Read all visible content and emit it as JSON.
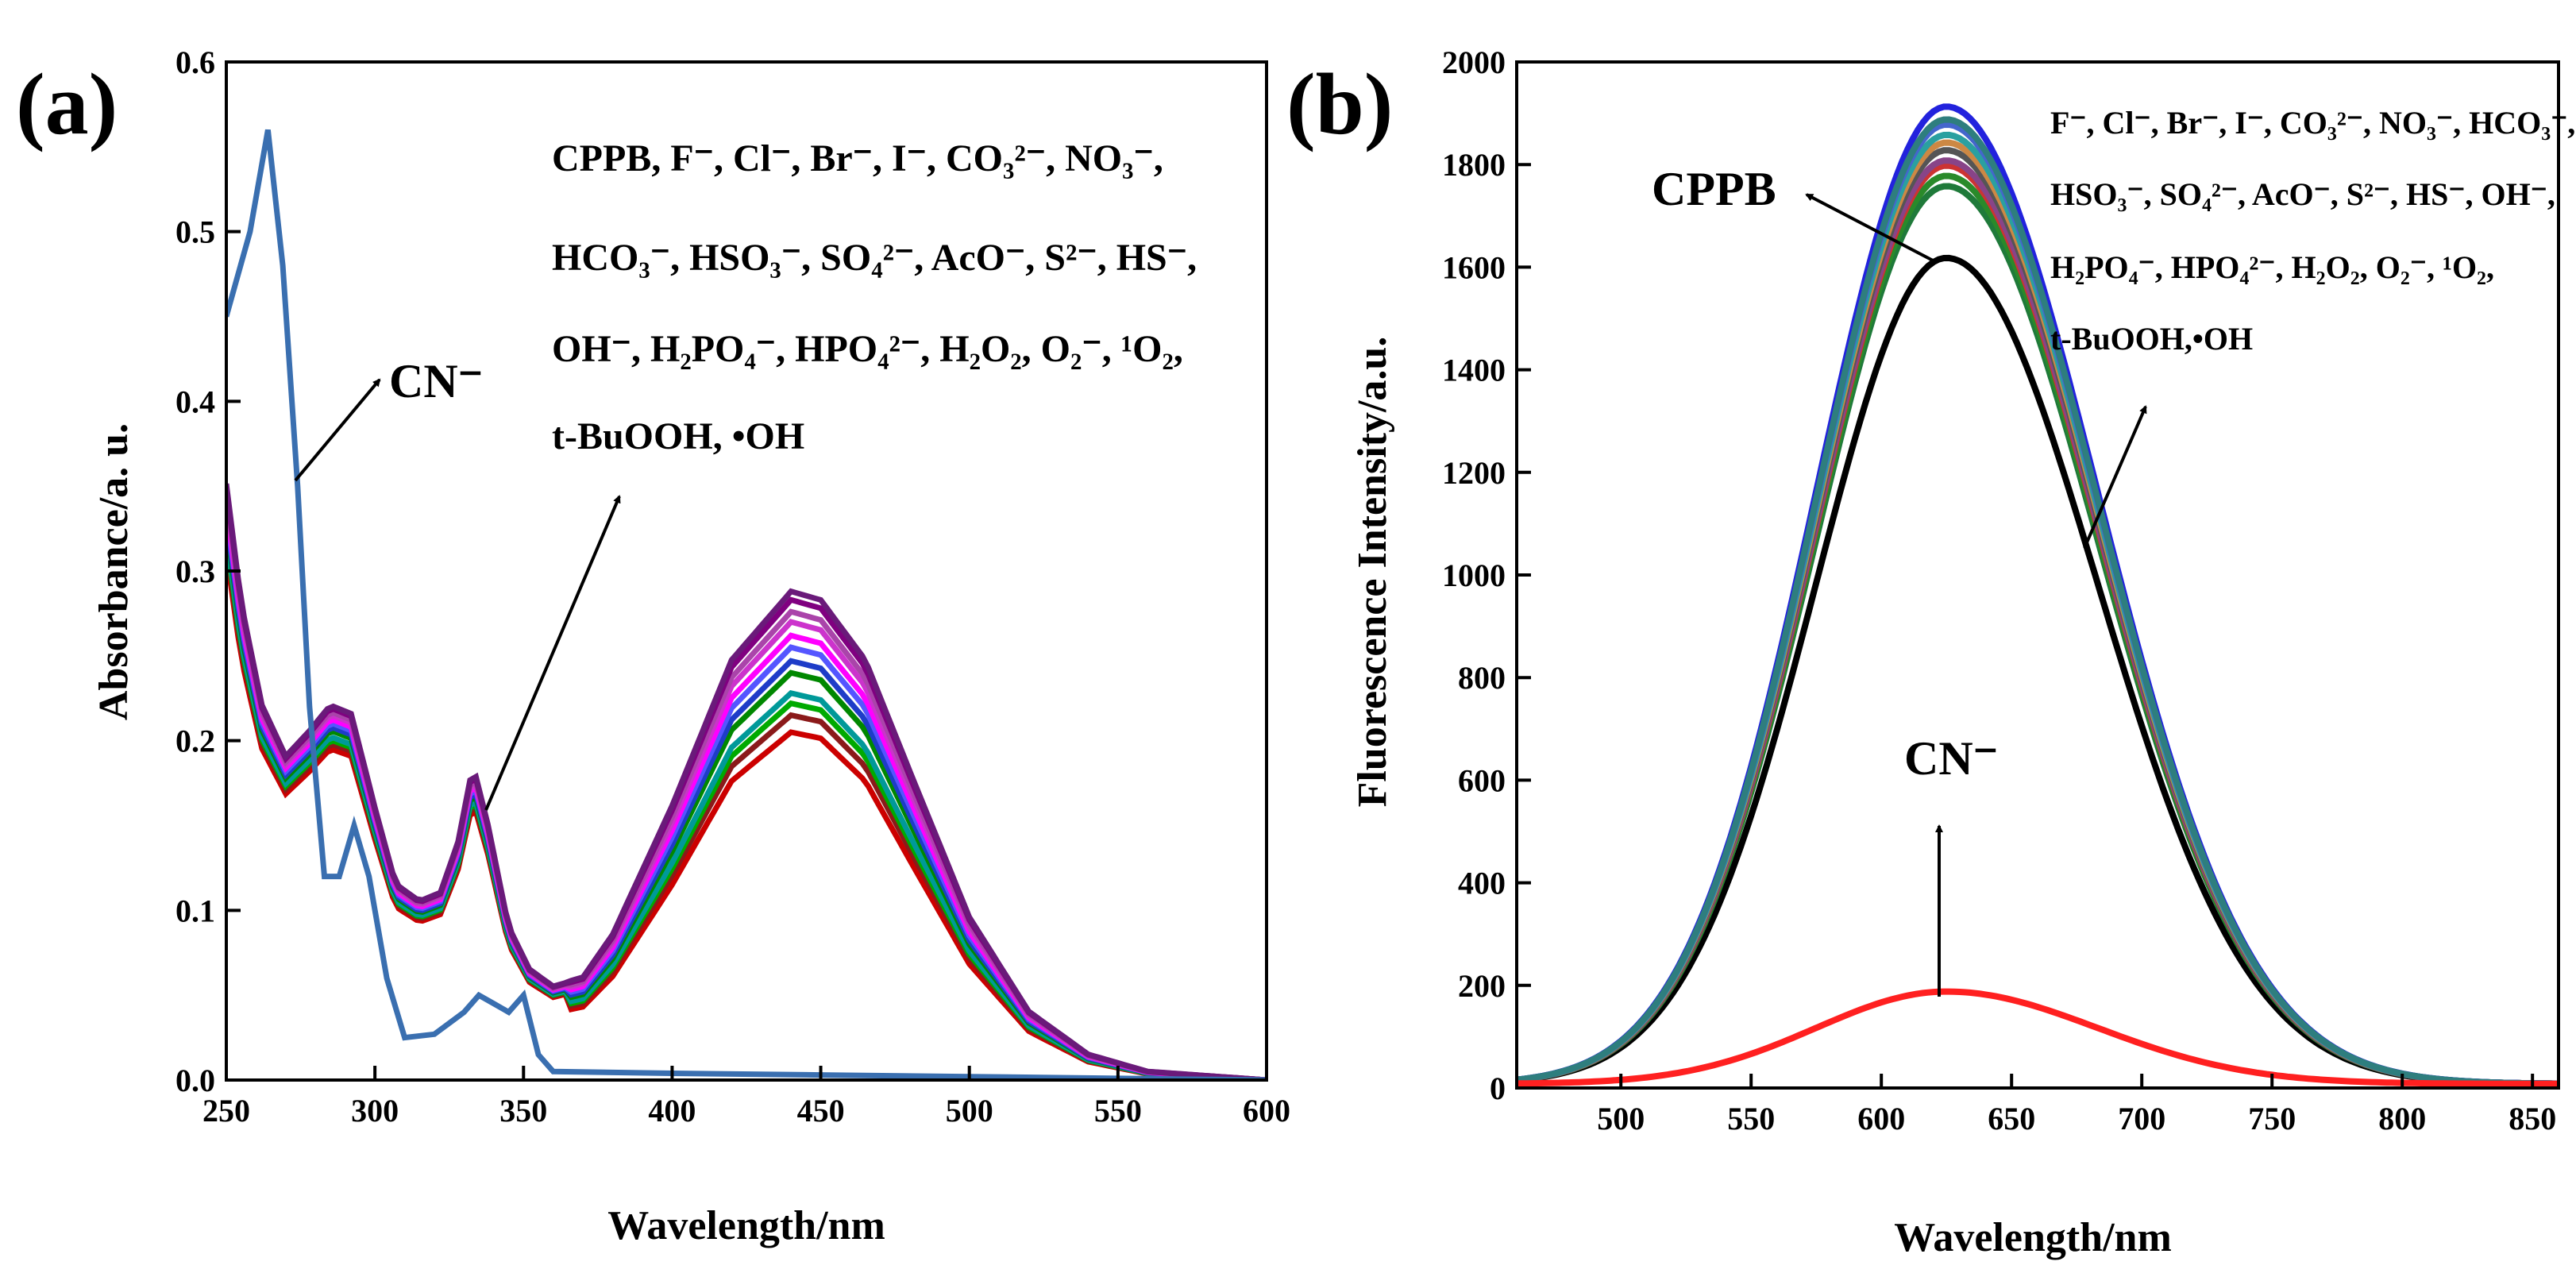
{
  "chart_data": [
    {
      "panel": "(a)",
      "type": "line",
      "xlabel": "Wavelength/nm",
      "ylabel": "Absorbance/a. u.",
      "xlim": [
        250,
        600
      ],
      "ylim": [
        0,
        0.6
      ],
      "xticks": [
        "250",
        "300",
        "350",
        "400",
        "450",
        "500",
        "550",
        "600"
      ],
      "yticks": [
        "0.0",
        "0.1",
        "0.2",
        "0.3",
        "0.4",
        "0.5",
        "0.6"
      ],
      "annotations": {
        "cn": "CN⁻",
        "ions": [
          "CPPB, F⁻, Cl⁻, Br⁻, I⁻, CO₃²⁻, NO₃⁻,",
          "HCO₃⁻, HSO₃⁻, SO₄²⁻, AcO⁻, S²⁻, HS⁻,",
          "OH⁻, H₂PO₄⁻, HPO₄²⁻, H₂O₂, O₂⁻, ¹O₂,",
          "t-BuOOH, •OH"
        ]
      },
      "series": [
        {
          "name": "CN⁻",
          "color": "#3a6fb0",
          "points": [
            [
              250,
              0.45
            ],
            [
              258,
              0.5
            ],
            [
              264,
              0.56
            ],
            [
              269,
              0.48
            ],
            [
              274,
              0.35
            ],
            [
              278,
              0.22
            ],
            [
              283,
              0.12
            ],
            [
              288,
              0.12
            ],
            [
              293,
              0.15
            ],
            [
              298,
              0.12
            ],
            [
              304,
              0.06
            ],
            [
              310,
              0.025
            ],
            [
              320,
              0.027
            ],
            [
              330,
              0.04
            ],
            [
              335,
              0.05
            ],
            [
              340,
              0.045
            ],
            [
              345,
              0.04
            ],
            [
              350,
              0.05
            ],
            [
              355,
              0.015
            ],
            [
              360,
              0.005
            ],
            [
              400,
              0.004
            ],
            [
              450,
              0.003
            ],
            [
              500,
              0.002
            ],
            [
              600,
              0.0
            ]
          ]
        },
        {
          "color": "#cc0000",
          "peak": 0.205
        },
        {
          "color": "#8b1a1a",
          "peak": 0.215
        },
        {
          "color": "#00aa00",
          "peak": 0.222
        },
        {
          "color": "#009999",
          "peak": 0.228
        },
        {
          "color": "#008800",
          "peak": 0.24
        },
        {
          "color": "#1e3cc8",
          "peak": 0.247
        },
        {
          "color": "#5555ff",
          "peak": 0.255
        },
        {
          "color": "#ff00ff",
          "peak": 0.262
        },
        {
          "color": "#cc33cc",
          "peak": 0.27
        },
        {
          "color": "#aa44aa",
          "peak": 0.276
        },
        {
          "color": "#800080",
          "peak": 0.283
        },
        {
          "color": "#6a1a7a",
          "peak": 0.288
        }
      ],
      "base_shape": [
        [
          250,
          0.35
        ],
        [
          255,
          0.28
        ],
        [
          262,
          0.22
        ],
        [
          270,
          0.19
        ],
        [
          278,
          0.205
        ],
        [
          285,
          0.22
        ],
        [
          292,
          0.215
        ],
        [
          300,
          0.16
        ],
        [
          307,
          0.115
        ],
        [
          315,
          0.105
        ],
        [
          322,
          0.11
        ],
        [
          328,
          0.14
        ],
        [
          333,
          0.185
        ],
        [
          338,
          0.15
        ],
        [
          345,
          0.09
        ],
        [
          352,
          0.065
        ],
        [
          360,
          0.055
        ],
        [
          370,
          0.06
        ],
        [
          380,
          0.085
        ],
        [
          400,
          0.16
        ],
        [
          420,
          0.245
        ],
        [
          440,
          0.285
        ],
        [
          450,
          0.28
        ],
        [
          465,
          0.245
        ],
        [
          480,
          0.18
        ],
        [
          500,
          0.095
        ],
        [
          520,
          0.04
        ],
        [
          540,
          0.015
        ],
        [
          560,
          0.005
        ],
        [
          600,
          0.0
        ]
      ]
    },
    {
      "panel": "(b)",
      "type": "line",
      "xlabel": "Wavelength/nm",
      "ylabel": "Fluorescence Intensity/a.u.",
      "xlim": [
        460,
        860
      ],
      "ylim": [
        0,
        2000
      ],
      "xticks": [
        "500",
        "550",
        "600",
        "650",
        "700",
        "750",
        "800",
        "850"
      ],
      "yticks": [
        "0",
        "200",
        "400",
        "600",
        "800",
        "1000",
        "1200",
        "1400",
        "1600",
        "1800",
        "2000"
      ],
      "annotations": {
        "cppb": "CPPB",
        "cn": "CN⁻",
        "ions": [
          "F⁻, Cl⁻, Br⁻, I⁻, CO₃²⁻, NO₃⁻, HCO₃⁻,",
          "HSO₃⁻, SO₄²⁻, AcO⁻, S²⁻, HS⁻, OH⁻,",
          "H₂PO₄⁻, HPO₄²⁻, H₂O₂, O₂⁻, ¹O₂,",
          "t-BuOOH,•OH"
        ]
      },
      "peak_wavelength": 625,
      "series": [
        {
          "name": "CN⁻",
          "color": "#ff2020",
          "peak": 180
        },
        {
          "name": "CPPB",
          "color": "#000000",
          "peak": 1610
        },
        {
          "color": "#1f7a3a",
          "peak": 1750
        },
        {
          "color": "#2a8a2a",
          "peak": 1770
        },
        {
          "color": "#cc3333",
          "peak": 1790
        },
        {
          "color": "#884488",
          "peak": 1800
        },
        {
          "color": "#555555",
          "peak": 1820
        },
        {
          "color": "#cc8844",
          "peak": 1835
        },
        {
          "color": "#2aa0a0",
          "peak": 1850
        },
        {
          "color": "#4466cc",
          "peak": 1870
        },
        {
          "color": "#2222dd",
          "peak": 1905
        },
        {
          "color": "#2e7e7e",
          "peak": 1880
        }
      ]
    }
  ]
}
